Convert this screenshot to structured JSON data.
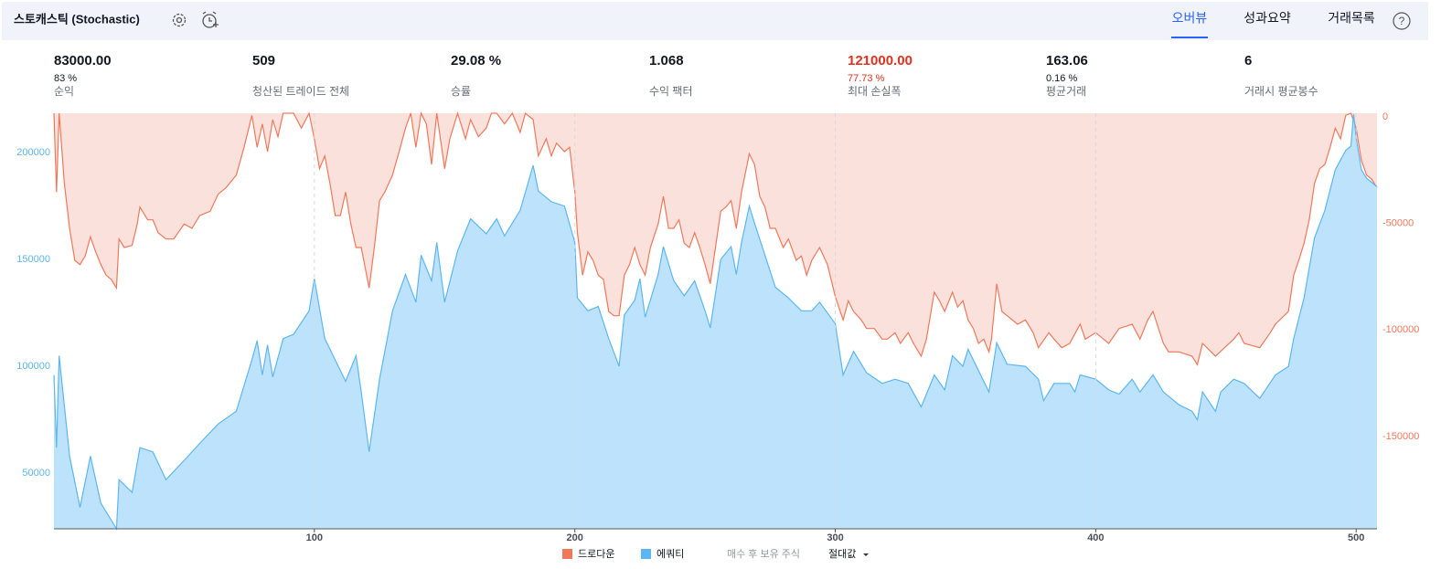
{
  "header": {
    "title": "스토캐스틱 (Stochastic)",
    "tabs": [
      "오버뷰",
      "성과요약",
      "거래목록"
    ],
    "active_tab": 0,
    "help": "?"
  },
  "stats": [
    {
      "value": "83000.00",
      "sub": "83 %",
      "label": "순익"
    },
    {
      "value": "509",
      "label": "청산된 트레이드 전체"
    },
    {
      "value": "29.08 %",
      "label": "승률"
    },
    {
      "value": "1.068",
      "label": "수익 팩터"
    },
    {
      "value": "121000.00",
      "sub": "77.73 %",
      "label": "최대 손실폭",
      "color": "#e0301e"
    },
    {
      "value": "163.06",
      "sub": "0.16 %",
      "label": "평균거래"
    },
    {
      "value": "6",
      "label": "거래시 평균봉수"
    }
  ],
  "legend_extra": {
    "buy_hold": "매수 후 보유 주식",
    "mode": "절대값"
  },
  "chart_data": {
    "type": "area",
    "xlim": [
      0,
      508
    ],
    "xticks": [
      100,
      200,
      300,
      400,
      500
    ],
    "ylim": [
      24000,
      218400
    ],
    "yticks": [
      50000,
      100000,
      150000,
      200000
    ],
    "y2lim": [
      -195000,
      0
    ],
    "y2ticks": [
      -150000,
      -100000,
      -50000,
      0
    ],
    "grid": true,
    "series": [
      {
        "name": "드로다운",
        "color": "#f0785a",
        "fill": "#fbe1dc",
        "axis": "y2",
        "x": [
          0,
          1,
          2,
          4,
          6,
          8,
          10,
          12,
          14,
          16,
          18,
          20,
          22,
          24,
          25,
          27,
          30,
          32,
          33,
          36,
          38,
          40,
          43,
          46,
          50,
          53,
          56,
          60,
          63,
          66,
          70,
          73,
          76,
          78,
          80,
          82,
          84,
          86,
          88,
          92,
          95,
          98,
          100,
          102,
          104,
          106,
          108,
          110,
          112,
          114,
          116,
          118,
          121,
          123,
          125,
          127,
          130,
          133,
          135,
          137,
          139,
          141,
          143,
          145,
          147,
          150,
          152,
          155,
          158,
          160,
          163,
          166,
          168,
          170,
          173,
          176,
          179,
          181,
          184,
          186,
          189,
          191,
          193,
          196,
          198,
          200,
          201,
          203,
          205,
          207,
          209,
          211,
          213,
          215,
          217,
          219,
          221,
          223,
          225,
          227,
          229,
          232,
          234,
          236,
          238,
          240,
          242,
          244,
          246,
          248,
          250,
          252,
          254,
          256,
          258,
          260,
          262,
          264,
          267,
          269,
          271,
          273,
          275,
          277,
          280,
          282,
          285,
          287,
          289,
          291,
          294,
          297,
          300,
          303,
          305,
          307,
          310,
          312,
          315,
          318,
          320,
          323,
          325,
          328,
          330,
          333,
          335,
          338,
          340,
          342,
          345,
          347,
          349,
          351,
          353,
          355,
          357,
          359,
          360,
          362,
          364,
          366,
          370,
          373,
          376,
          378,
          382,
          384,
          387,
          390,
          394,
          396,
          400,
          405,
          409,
          414,
          417,
          420,
          422,
          426,
          428,
          432,
          437,
          439,
          441,
          446,
          453,
          455,
          457,
          463,
          467,
          469,
          474,
          476,
          478,
          480,
          482,
          484,
          486,
          488,
          490,
          492,
          494,
          496,
          498,
          500,
          502,
          504,
          506,
          508
        ],
        "values": [
          0,
          -37000,
          0,
          -33000,
          -54000,
          -69000,
          -71000,
          -67000,
          -58000,
          -65000,
          -71000,
          -76000,
          -78000,
          -82000,
          -59000,
          -63000,
          -62000,
          -52000,
          -44000,
          -50000,
          -50000,
          -56000,
          -59000,
          -59000,
          -52000,
          -54000,
          -48000,
          -46000,
          -38000,
          -35000,
          -29000,
          -16000,
          -1000,
          -16000,
          -5000,
          -18000,
          -3000,
          -11000,
          0,
          0,
          -7000,
          0,
          -12000,
          -26000,
          -20000,
          -33000,
          -48000,
          -48000,
          -37000,
          -52000,
          -63000,
          -63000,
          -82000,
          -63000,
          -41000,
          -37000,
          -29000,
          -16000,
          -7000,
          0,
          -16000,
          0,
          -5000,
          -24000,
          0,
          -26000,
          -12000,
          0,
          -12000,
          -3000,
          -11000,
          -7000,
          0,
          0,
          -5000,
          0,
          -9000,
          0,
          -3000,
          -20000,
          -12000,
          -20000,
          -14000,
          -18000,
          -16000,
          -37000,
          -56000,
          -76000,
          -65000,
          -69000,
          -76000,
          -78000,
          -93000,
          -95000,
          -95000,
          -76000,
          -71000,
          -63000,
          -71000,
          -76000,
          -63000,
          -52000,
          -39000,
          -54000,
          -54000,
          -50000,
          -61000,
          -63000,
          -56000,
          -63000,
          -71000,
          -80000,
          -63000,
          -46000,
          -44000,
          -41000,
          -54000,
          -37000,
          -19000,
          -24000,
          -39000,
          -44000,
          -54000,
          -54000,
          -63000,
          -59000,
          -69000,
          -67000,
          -76000,
          -69000,
          -63000,
          -71000,
          -86000,
          -97000,
          -88000,
          -93000,
          -97000,
          -101000,
          -101000,
          -106000,
          -106000,
          -103000,
          -108000,
          -103000,
          -108000,
          -114000,
          -106000,
          -84000,
          -88000,
          -93000,
          -84000,
          -91000,
          -88000,
          -97000,
          -101000,
          -108000,
          -106000,
          -112000,
          -106000,
          -80000,
          -93000,
          -95000,
          -99000,
          -97000,
          -103000,
          -110000,
          -103000,
          -106000,
          -110000,
          -108000,
          -99000,
          -106000,
          -103000,
          -108000,
          -101000,
          -99000,
          -106000,
          -97000,
          -93000,
          -108000,
          -112000,
          -112000,
          -114000,
          -118000,
          -108000,
          -114000,
          -106000,
          -103000,
          -108000,
          -110000,
          -103000,
          -99000,
          -93000,
          -76000,
          -69000,
          -61000,
          -50000,
          -33000,
          -26000,
          -24000,
          -16000,
          -7000,
          -12000,
          -1000,
          0,
          -7000,
          -22000,
          -29000,
          -31000,
          -35000
        ]
      },
      {
        "name": "에쿼티",
        "color": "#5cb6f2",
        "fill": "#bde3fc",
        "x": [
          0,
          1,
          2,
          6,
          10,
          14,
          18,
          22,
          24,
          25,
          30,
          33,
          38,
          43,
          50,
          56,
          63,
          70,
          76,
          78,
          80,
          82,
          84,
          88,
          92,
          98,
          100,
          104,
          108,
          112,
          116,
          118,
          121,
          125,
          130,
          135,
          139,
          141,
          145,
          147,
          150,
          155,
          160,
          166,
          170,
          173,
          179,
          184,
          186,
          191,
          196,
          200,
          201,
          205,
          209,
          213,
          217,
          219,
          223,
          225,
          227,
          232,
          234,
          238,
          242,
          246,
          250,
          252,
          256,
          260,
          262,
          264,
          267,
          269,
          273,
          277,
          282,
          287,
          291,
          294,
          300,
          303,
          307,
          312,
          318,
          323,
          328,
          333,
          338,
          342,
          345,
          349,
          351,
          355,
          359,
          362,
          366,
          373,
          378,
          380,
          384,
          390,
          392,
          394,
          400,
          405,
          409,
          414,
          417,
          422,
          426,
          432,
          437,
          439,
          441,
          446,
          448,
          453,
          457,
          463,
          469,
          474,
          476,
          480,
          484,
          488,
          492,
          496,
          498,
          499,
          500,
          502,
          504,
          508
        ],
        "values": [
          96000,
          62000,
          105000,
          58000,
          34000,
          58000,
          36000,
          28000,
          24000,
          47000,
          41000,
          62000,
          60000,
          47000,
          56000,
          64000,
          73000,
          79000,
          103000,
          112000,
          96000,
          110000,
          95000,
          113000,
          115000,
          126000,
          141000,
          113000,
          103000,
          93000,
          105000,
          88000,
          60000,
          94000,
          126000,
          143000,
          130000,
          152000,
          140000,
          158000,
          130000,
          154000,
          169000,
          162000,
          169000,
          161000,
          173000,
          194000,
          182000,
          177000,
          175000,
          158000,
          132000,
          126000,
          128000,
          113000,
          100000,
          124000,
          131000,
          141000,
          123000,
          143000,
          156000,
          140000,
          133000,
          140000,
          126000,
          118000,
          150000,
          156000,
          143000,
          158000,
          175000,
          167000,
          152000,
          137000,
          132000,
          126000,
          126000,
          130000,
          120000,
          96000,
          107000,
          97000,
          92000,
          94000,
          92000,
          81000,
          96000,
          89000,
          105000,
          100000,
          108000,
          98000,
          88000,
          111000,
          101000,
          100000,
          94000,
          84000,
          92000,
          92000,
          88000,
          96000,
          94000,
          89000,
          87000,
          94000,
          88000,
          96000,
          88000,
          82000,
          79000,
          75000,
          88000,
          79000,
          88000,
          94000,
          92000,
          85000,
          96000,
          100000,
          113000,
          132000,
          160000,
          173000,
          192000,
          201000,
          203000,
          218000,
          207000,
          192000,
          188000,
          184000
        ]
      }
    ]
  }
}
